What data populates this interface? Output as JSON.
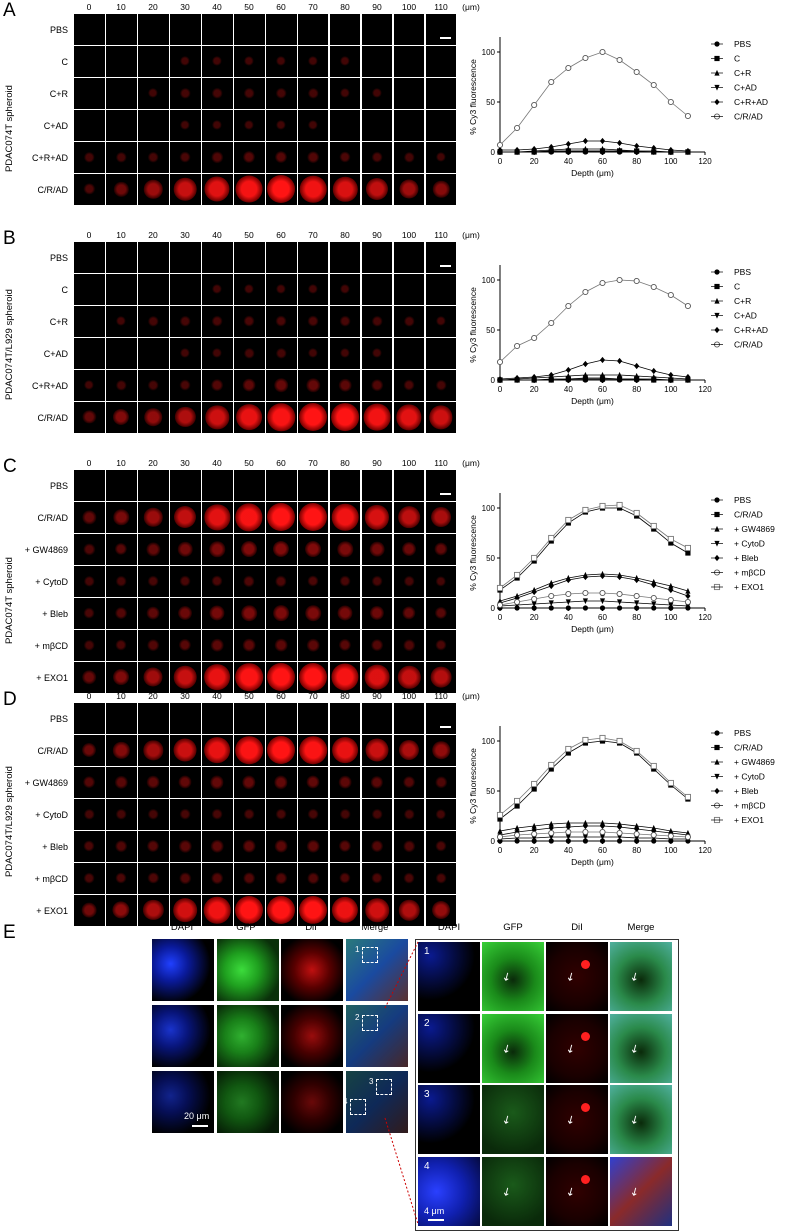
{
  "depth_ticks": [
    "0",
    "10",
    "20",
    "30",
    "40",
    "50",
    "60",
    "70",
    "80",
    "90",
    "100",
    "110",
    "(μm)"
  ],
  "panels": [
    {
      "label": "A",
      "spheroid_label": "PDAC074T spheroid",
      "rows": [
        "PBS",
        "C",
        "C+R",
        "C+AD",
        "C+R+AD",
        "C/R/AD"
      ]
    },
    {
      "label": "B",
      "spheroid_label": "PDAC074T/L929 spheroid",
      "rows": [
        "PBS",
        "C",
        "C+R",
        "C+AD",
        "C+R+AD",
        "C/R/AD"
      ]
    },
    {
      "label": "C",
      "spheroid_label": "PDAC074T spheroid",
      "rows": [
        "PBS",
        "C/R/AD",
        "+ GW4869",
        "+ CytoD",
        "+ Bleb",
        "+ mβCD",
        "+ EXO1"
      ]
    },
    {
      "label": "D",
      "spheroid_label": "PDAC074T/L929 spheroid",
      "rows": [
        "PBS",
        "C/R/AD",
        "+ GW4869",
        "+ CytoD",
        "+ Bleb",
        "+ mβCD",
        "+ EXO1"
      ]
    }
  ],
  "chart_data": [
    {
      "type": "line",
      "xlabel": "Depth (μm)",
      "ylabel": "% Cy3 fluorescence",
      "xlim": [
        0,
        120
      ],
      "ylim": [
        0,
        100
      ],
      "xticks": [
        0,
        20,
        40,
        60,
        80,
        100,
        120
      ],
      "yticks": [
        0,
        50,
        100
      ],
      "x": [
        0,
        10,
        20,
        30,
        40,
        50,
        60,
        70,
        80,
        90,
        100,
        110
      ],
      "series": [
        {
          "name": "PBS",
          "marker": "circle-filled",
          "values": [
            0,
            0,
            0,
            0,
            0,
            0,
            0,
            0,
            0,
            0,
            0,
            0
          ]
        },
        {
          "name": "C",
          "marker": "square-filled",
          "values": [
            0,
            0,
            0,
            1,
            1,
            1,
            1,
            1,
            1,
            0,
            0,
            0
          ]
        },
        {
          "name": "C+R",
          "marker": "triangle-up",
          "values": [
            0,
            0,
            1,
            2,
            3,
            3,
            3,
            2,
            1,
            1,
            0,
            0
          ]
        },
        {
          "name": "C+AD",
          "marker": "triangle-down",
          "values": [
            0,
            0,
            0,
            1,
            1,
            1,
            1,
            1,
            0,
            0,
            0,
            0
          ]
        },
        {
          "name": "C+R+AD",
          "marker": "diamond",
          "values": [
            2,
            2,
            3,
            5,
            8,
            11,
            11,
            9,
            6,
            4,
            2,
            1
          ]
        },
        {
          "name": "C/R/AD",
          "marker": "circle-open",
          "values": [
            7,
            24,
            47,
            70,
            84,
            94,
            100,
            92,
            80,
            67,
            50,
            36
          ]
        }
      ]
    },
    {
      "type": "line",
      "xlabel": "Depth (μm)",
      "ylabel": "% Cy3 fluorescence",
      "xlim": [
        0,
        120
      ],
      "ylim": [
        0,
        100
      ],
      "xticks": [
        0,
        20,
        40,
        60,
        80,
        100,
        120
      ],
      "yticks": [
        0,
        50,
        100
      ],
      "x": [
        0,
        10,
        20,
        30,
        40,
        50,
        60,
        70,
        80,
        90,
        100,
        110
      ],
      "series": [
        {
          "name": "PBS",
          "marker": "circle-filled",
          "values": [
            0,
            0,
            0,
            0,
            0,
            0,
            0,
            0,
            0,
            0,
            0,
            0
          ]
        },
        {
          "name": "C",
          "marker": "square-filled",
          "values": [
            0,
            0,
            0,
            0,
            1,
            1,
            1,
            1,
            1,
            0,
            0,
            0
          ]
        },
        {
          "name": "C+R",
          "marker": "triangle-up",
          "values": [
            0,
            1,
            2,
            3,
            4,
            5,
            5,
            5,
            4,
            3,
            2,
            1
          ]
        },
        {
          "name": "C+AD",
          "marker": "triangle-down",
          "values": [
            0,
            0,
            0,
            1,
            1,
            2,
            2,
            1,
            1,
            1,
            0,
            0
          ]
        },
        {
          "name": "C+R+AD",
          "marker": "diamond",
          "values": [
            1,
            2,
            3,
            5,
            10,
            16,
            20,
            19,
            14,
            9,
            5,
            3
          ]
        },
        {
          "name": "C/R/AD",
          "marker": "circle-open",
          "values": [
            18,
            34,
            42,
            57,
            74,
            88,
            97,
            100,
            99,
            93,
            85,
            74
          ]
        }
      ]
    },
    {
      "type": "line",
      "xlabel": "Depth (μm)",
      "ylabel": "% Cy3 fluorescence",
      "xlim": [
        0,
        120
      ],
      "ylim": [
        0,
        100
      ],
      "xticks": [
        0,
        20,
        40,
        60,
        80,
        100,
        120
      ],
      "yticks": [
        0,
        50,
        100
      ],
      "x": [
        0,
        10,
        20,
        30,
        40,
        50,
        60,
        70,
        80,
        90,
        100,
        110
      ],
      "series": [
        {
          "name": "PBS",
          "marker": "circle-filled",
          "values": [
            0,
            0,
            0,
            0,
            0,
            0,
            0,
            0,
            0,
            0,
            0,
            0
          ]
        },
        {
          "name": "C/R/AD",
          "marker": "square-filled",
          "values": [
            18,
            30,
            47,
            67,
            85,
            96,
            100,
            100,
            92,
            79,
            65,
            55
          ]
        },
        {
          "name": "+ GW4869",
          "marker": "triangle-up",
          "values": [
            7,
            12,
            18,
            25,
            30,
            33,
            34,
            33,
            30,
            26,
            22,
            17
          ]
        },
        {
          "name": "+ CytoD",
          "marker": "triangle-down",
          "values": [
            2,
            3,
            4,
            5,
            6,
            7,
            7,
            6,
            5,
            4,
            3,
            2
          ]
        },
        {
          "name": "+ Bleb",
          "marker": "diamond",
          "values": [
            5,
            10,
            16,
            22,
            28,
            31,
            32,
            31,
            28,
            23,
            18,
            12
          ]
        },
        {
          "name": "+ mβCD",
          "marker": "circle-open",
          "values": [
            3,
            6,
            9,
            12,
            14,
            15,
            15,
            14,
            12,
            10,
            8,
            6
          ]
        },
        {
          "name": "+ EXO1",
          "marker": "square-open",
          "values": [
            20,
            33,
            50,
            70,
            88,
            98,
            102,
            103,
            95,
            82,
            69,
            60
          ]
        }
      ]
    },
    {
      "type": "line",
      "xlabel": "Depth (μm)",
      "ylabel": "% Cy3 fluorescence",
      "xlim": [
        0,
        120
      ],
      "ylim": [
        0,
        100
      ],
      "xticks": [
        0,
        20,
        40,
        60,
        80,
        100,
        120
      ],
      "yticks": [
        0,
        50,
        100
      ],
      "x": [
        0,
        10,
        20,
        30,
        40,
        50,
        60,
        70,
        80,
        90,
        100,
        110
      ],
      "series": [
        {
          "name": "PBS",
          "marker": "circle-filled",
          "values": [
            0,
            0,
            0,
            0,
            0,
            0,
            0,
            0,
            0,
            0,
            0,
            0
          ]
        },
        {
          "name": "C/R/AD",
          "marker": "square-filled",
          "values": [
            22,
            35,
            52,
            72,
            88,
            98,
            100,
            98,
            88,
            72,
            56,
            42
          ]
        },
        {
          "name": "+ GW4869",
          "marker": "triangle-up",
          "values": [
            10,
            13,
            15,
            17,
            18,
            18,
            18,
            17,
            15,
            13,
            10,
            8
          ]
        },
        {
          "name": "+ CytoD",
          "marker": "triangle-down",
          "values": [
            2,
            3,
            3,
            4,
            4,
            4,
            4,
            4,
            3,
            3,
            2,
            2
          ]
        },
        {
          "name": "+ Bleb",
          "marker": "diamond",
          "values": [
            6,
            9,
            11,
            13,
            14,
            15,
            15,
            14,
            12,
            10,
            8,
            6
          ]
        },
        {
          "name": "+ mβCD",
          "marker": "circle-open",
          "values": [
            4,
            6,
            7,
            8,
            9,
            9,
            9,
            8,
            7,
            6,
            5,
            4
          ]
        },
        {
          "name": "+ EXO1",
          "marker": "square-open",
          "values": [
            26,
            40,
            57,
            76,
            92,
            101,
            103,
            100,
            90,
            75,
            58,
            44
          ]
        }
      ]
    }
  ],
  "panel_e": {
    "label": "E",
    "columns": [
      "DAPI",
      "GFP",
      "DiI",
      "Merge"
    ],
    "zoom_columns": [
      "DAPI",
      "GFP",
      "DiI",
      "Merge"
    ],
    "zoom_numbers": [
      "1",
      "2",
      "3",
      "4"
    ],
    "overview_box_numbers": [
      "1",
      "2",
      "3",
      "4"
    ],
    "scale_main": "20 μm",
    "scale_zoom": "4 μm"
  }
}
